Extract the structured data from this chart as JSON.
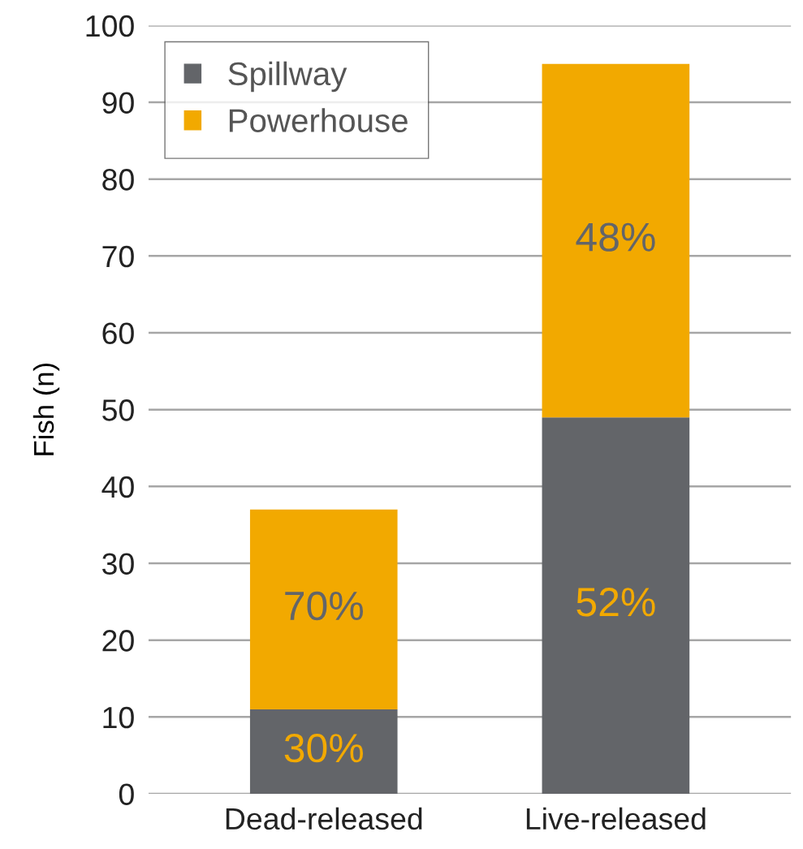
{
  "chart_data": {
    "type": "bar",
    "stacked": true,
    "ylabel": "Fish (n)",
    "categories": [
      "Dead-released",
      "Live-released"
    ],
    "series": [
      {
        "name": "Spillway",
        "color": "#636569",
        "values": [
          11,
          49
        ]
      },
      {
        "name": "Powerhouse",
        "color": "#f2a900",
        "values": [
          26,
          46
        ]
      }
    ],
    "annotations": [
      "30%",
      "52%",
      "70%",
      "48%"
    ],
    "ylim": [
      0,
      100
    ],
    "yticks": [
      0,
      10,
      20,
      30,
      40,
      50,
      60,
      70,
      80,
      90,
      100
    ],
    "grid": "y",
    "legend": "top left"
  }
}
